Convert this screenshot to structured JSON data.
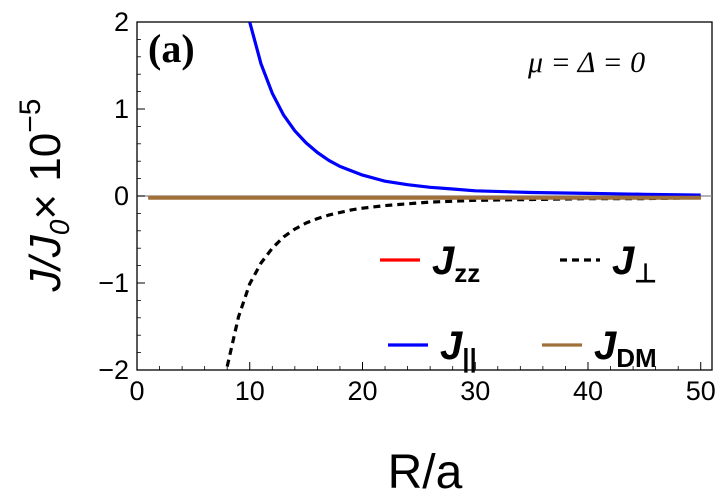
{
  "chart_data": {
    "type": "line",
    "panel_label": "(a)",
    "annotation": "μ = Δ = 0",
    "xlabel": "R/a",
    "ylabel": {
      "main": "J/J",
      "sub": "0",
      "times": "× 10",
      "exp": "−5"
    },
    "xlim": [
      0,
      51
    ],
    "ylim": [
      -2,
      2
    ],
    "xticks": [
      0,
      10,
      20,
      30,
      40,
      50
    ],
    "yticks": [
      -2,
      -1,
      0,
      1,
      2
    ],
    "ytick_labels": [
      "−2",
      "−1",
      "0",
      "1",
      "2"
    ],
    "grid": false,
    "legend_placement": "lower-right, inside plot, two columns",
    "series": [
      {
        "key": "Jzz",
        "label_main": "J",
        "label_sub": "zz",
        "color": "#ff0000",
        "style": "solid",
        "points": [
          [
            1,
            -0.02
          ],
          [
            50,
            -0.02
          ]
        ]
      },
      {
        "key": "Jperp",
        "label_main": "J",
        "label_sub": "⊥",
        "color": "#000000",
        "style": "dashed",
        "points": [
          [
            8,
            -1.96
          ],
          [
            9,
            -1.39
          ],
          [
            10,
            -1.01
          ],
          [
            11,
            -0.77
          ],
          [
            12,
            -0.6
          ],
          [
            13,
            -0.47
          ],
          [
            14,
            -0.38
          ],
          [
            15,
            -0.31
          ],
          [
            16,
            -0.26
          ],
          [
            17,
            -0.22
          ],
          [
            18,
            -0.19
          ],
          [
            19,
            -0.16
          ],
          [
            20,
            -0.14
          ],
          [
            22,
            -0.11
          ],
          [
            24,
            -0.09
          ],
          [
            26,
            -0.07
          ],
          [
            28,
            -0.06
          ],
          [
            30,
            -0.05
          ],
          [
            35,
            -0.04
          ],
          [
            40,
            -0.03
          ],
          [
            45,
            -0.03
          ],
          [
            50,
            -0.02
          ]
        ]
      },
      {
        "key": "Jpar",
        "label_main": "J",
        "label_sub": "||",
        "color": "#0000ff",
        "style": "solid",
        "points": [
          [
            10,
            2.0
          ],
          [
            11,
            1.52
          ],
          [
            12,
            1.18
          ],
          [
            13,
            0.93
          ],
          [
            14,
            0.75
          ],
          [
            15,
            0.61
          ],
          [
            16,
            0.5
          ],
          [
            17,
            0.41
          ],
          [
            18,
            0.34
          ],
          [
            19,
            0.29
          ],
          [
            20,
            0.24
          ],
          [
            22,
            0.17
          ],
          [
            24,
            0.13
          ],
          [
            26,
            0.1
          ],
          [
            28,
            0.08
          ],
          [
            30,
            0.06
          ],
          [
            35,
            0.04
          ],
          [
            40,
            0.03
          ],
          [
            45,
            0.02
          ],
          [
            50,
            0.01
          ]
        ]
      },
      {
        "key": "JDM",
        "label_main": "J",
        "label_sub": "DM",
        "color": "#a0703a",
        "style": "solid",
        "points": [
          [
            1,
            -0.02
          ],
          [
            50,
            -0.02
          ]
        ]
      }
    ]
  }
}
